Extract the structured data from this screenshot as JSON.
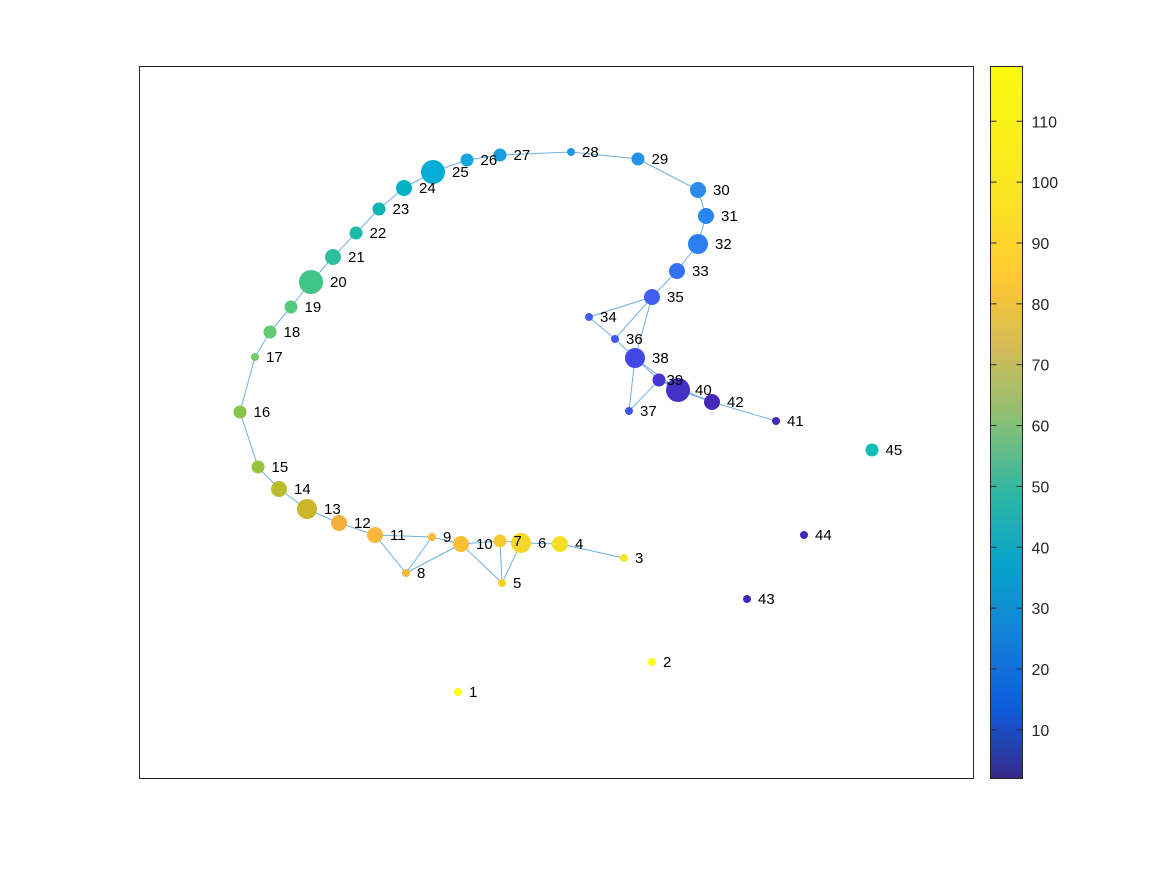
{
  "figure": {
    "edge_color": "#6fb1e2",
    "axes_border_color": "#262626"
  },
  "colorbar": {
    "min": 2,
    "max": 119,
    "ticks": [
      10,
      20,
      30,
      40,
      50,
      60,
      70,
      80,
      90,
      100,
      110
    ],
    "tick_labels": [
      "10",
      "20",
      "30",
      "40",
      "50",
      "60",
      "70",
      "80",
      "90",
      "100",
      "110"
    ],
    "colormap": "parula"
  },
  "graph": {
    "nodes": [
      {
        "id": 1,
        "label": "1",
        "color": "#f9fb15",
        "weight": 1
      },
      {
        "id": 2,
        "label": "2",
        "color": "#f8fa18",
        "weight": 1
      },
      {
        "id": 3,
        "label": "3",
        "color": "#f3e725",
        "weight": 1
      },
      {
        "id": 4,
        "label": "4",
        "color": "#f4e022",
        "weight": 3
      },
      {
        "id": 5,
        "label": "5",
        "color": "#f6d02c",
        "weight": 1
      },
      {
        "id": 6,
        "label": "6",
        "color": "#f6d82b",
        "weight": 4
      },
      {
        "id": 7,
        "label": "7",
        "color": "#f5cb2e",
        "weight": 2
      },
      {
        "id": 8,
        "label": "8",
        "color": "#f8b83a",
        "weight": 1
      },
      {
        "id": 9,
        "label": "9",
        "color": "#fbba36",
        "weight": 1
      },
      {
        "id": 10,
        "label": "10",
        "color": "#fbc034",
        "weight": 3
      },
      {
        "id": 11,
        "label": "11",
        "color": "#fab63d",
        "weight": 3
      },
      {
        "id": 12,
        "label": "12",
        "color": "#f4ae3b",
        "weight": 3
      },
      {
        "id": 13,
        "label": "13",
        "color": "#cbb72a",
        "weight": 4
      },
      {
        "id": 14,
        "label": "14",
        "color": "#b9bc2c",
        "weight": 3
      },
      {
        "id": 15,
        "label": "15",
        "color": "#99c33c",
        "weight": 2
      },
      {
        "id": 16,
        "label": "16",
        "color": "#8ac549",
        "weight": 2
      },
      {
        "id": 17,
        "label": "17",
        "color": "#78c865",
        "weight": 1
      },
      {
        "id": 18,
        "label": "18",
        "color": "#66ca72",
        "weight": 2
      },
      {
        "id": 19,
        "label": "19",
        "color": "#53ca7e",
        "weight": 2
      },
      {
        "id": 20,
        "label": "20",
        "color": "#41c588",
        "weight": 5
      },
      {
        "id": 21,
        "label": "21",
        "color": "#2ebfa0",
        "weight": 3
      },
      {
        "id": 22,
        "label": "22",
        "color": "#1bbaa8",
        "weight": 2
      },
      {
        "id": 23,
        "label": "23",
        "color": "#0ab6b4",
        "weight": 2
      },
      {
        "id": 24,
        "label": "24",
        "color": "#03b1c3",
        "weight": 3
      },
      {
        "id": 25,
        "label": "25",
        "color": "#05acd3",
        "weight": 5
      },
      {
        "id": 26,
        "label": "26",
        "color": "#11a6dc",
        "weight": 2
      },
      {
        "id": 27,
        "label": "27",
        "color": "#1b9fe0",
        "weight": 2
      },
      {
        "id": 28,
        "label": "28",
        "color": "#2196e3",
        "weight": 1
      },
      {
        "id": 29,
        "label": "29",
        "color": "#2592e6",
        "weight": 2
      },
      {
        "id": 30,
        "label": "30",
        "color": "#2a8bed",
        "weight": 3
      },
      {
        "id": 31,
        "label": "31",
        "color": "#2c84f0",
        "weight": 3
      },
      {
        "id": 32,
        "label": "32",
        "color": "#2c7ef2",
        "weight": 4
      },
      {
        "id": 33,
        "label": "33",
        "color": "#3470f3",
        "weight": 3
      },
      {
        "id": 34,
        "label": "34",
        "color": "#3d62f2",
        "weight": 1
      },
      {
        "id": 35,
        "label": "35",
        "color": "#3f5ef2",
        "weight": 3
      },
      {
        "id": 36,
        "label": "36",
        "color": "#3f58ee",
        "weight": 1
      },
      {
        "id": 37,
        "label": "37",
        "color": "#4052ec",
        "weight": 1
      },
      {
        "id": 38,
        "label": "38",
        "color": "#4248e3",
        "weight": 4
      },
      {
        "id": 39,
        "label": "39",
        "color": "#4536d0",
        "weight": 2
      },
      {
        "id": 40,
        "label": "40",
        "color": "#4730c5",
        "weight": 5
      },
      {
        "id": 41,
        "label": "41",
        "color": "#452cb8",
        "weight": 1
      },
      {
        "id": 42,
        "label": "42",
        "color": "#4628b8",
        "weight": 3
      },
      {
        "id": 43,
        "label": "43",
        "color": "#4229ba",
        "weight": 1
      },
      {
        "id": 44,
        "label": "44",
        "color": "#4327bb",
        "weight": 1
      },
      {
        "id": 45,
        "label": "45",
        "color": "#0ebdb8",
        "weight": 2
      }
    ],
    "edges": [
      [
        3,
        4
      ],
      [
        4,
        6
      ],
      [
        6,
        7
      ],
      [
        6,
        5
      ],
      [
        7,
        5
      ],
      [
        7,
        10
      ],
      [
        10,
        5
      ],
      [
        10,
        9
      ],
      [
        9,
        11
      ],
      [
        10,
        8
      ],
      [
        9,
        8
      ],
      [
        11,
        8
      ],
      [
        11,
        12
      ],
      [
        12,
        13
      ],
      [
        13,
        14
      ],
      [
        14,
        15
      ],
      [
        15,
        16
      ],
      [
        16,
        17
      ],
      [
        17,
        18
      ],
      [
        18,
        19
      ],
      [
        19,
        20
      ],
      [
        20,
        21
      ],
      [
        21,
        22
      ],
      [
        22,
        23
      ],
      [
        23,
        24
      ],
      [
        24,
        25
      ],
      [
        25,
        26
      ],
      [
        26,
        27
      ],
      [
        27,
        28
      ],
      [
        28,
        29
      ],
      [
        29,
        30
      ],
      [
        30,
        31
      ],
      [
        31,
        32
      ],
      [
        32,
        33
      ],
      [
        33,
        35
      ],
      [
        35,
        34
      ],
      [
        34,
        36
      ],
      [
        35,
        36
      ],
      [
        35,
        38
      ],
      [
        36,
        38
      ],
      [
        38,
        39
      ],
      [
        39,
        40
      ],
      [
        38,
        40
      ],
      [
        38,
        37
      ],
      [
        37,
        39
      ],
      [
        40,
        42
      ],
      [
        39,
        42
      ],
      [
        42,
        41
      ]
    ]
  }
}
